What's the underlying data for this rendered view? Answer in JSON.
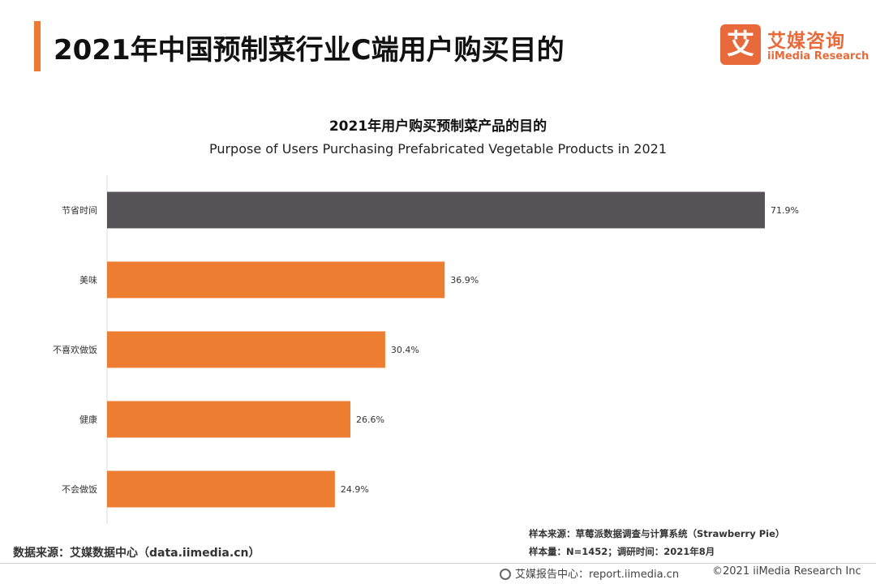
{
  "header": {
    "title": "2021年中国预制菜行业C端用户购买目的"
  },
  "logo": {
    "mark": "艾",
    "name_cn": "艾媒咨询",
    "name_en": "iiMedia Research",
    "color": "#e86a3a"
  },
  "chart_data": {
    "type": "bar",
    "orientation": "horizontal",
    "title": "2021年用户购买预制菜产品的目的",
    "subtitle": "Purpose of Users Purchasing Prefabricated Vegetable Products in 2021",
    "categories": [
      "节省时间",
      "美味",
      "不喜欢做饭",
      "健康",
      "不会做饭"
    ],
    "values": [
      71.9,
      36.9,
      30.4,
      26.6,
      24.9
    ],
    "value_labels": [
      "71.9%",
      "36.9%",
      "30.4%",
      "26.6%",
      "24.9%"
    ],
    "unit": "%",
    "xlim": [
      0,
      71.9
    ],
    "grid": false,
    "colors": {
      "highlight": "#555357",
      "default": "#ed7d31"
    },
    "highlight_index": 0
  },
  "sources": {
    "data_source": "数据来源：艾媒数据中心（data.iimedia.cn）",
    "sample_source": "样本来源：草莓派数据调查与计算系统（Strawberry Pie）",
    "sample_size": "样本量：N=1452；调研时间：2021年8月"
  },
  "footer": {
    "report": "艾媒报告中心：report.iimedia.cn",
    "copyright": "©2021  iiMedia Research  Inc",
    "icon": "globe-icon"
  }
}
